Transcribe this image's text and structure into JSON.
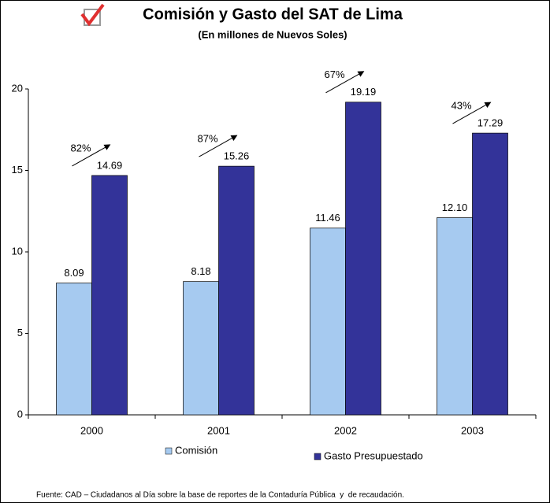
{
  "chart_data": {
    "type": "bar",
    "title": "Comisión y Gasto del SAT de Lima",
    "subtitle": "(En millones de Nuevos Soles)",
    "categories": [
      "2000",
      "2001",
      "2002",
      "2003"
    ],
    "series": [
      {
        "name": "Comisión",
        "color": "#a6caf0",
        "values": [
          8.09,
          8.18,
          11.46,
          12.1
        ],
        "value_labels": [
          "8.09",
          "8.18",
          "11.46",
          "12.10"
        ]
      },
      {
        "name": "Gasto Presupuestado",
        "color": "#333399",
        "values": [
          14.69,
          15.26,
          19.19,
          17.29
        ],
        "value_labels": [
          "14.69",
          "15.26",
          "19.19",
          "17.29"
        ]
      }
    ],
    "annotations": [
      "82%",
      "87%",
      "67%",
      "43%"
    ],
    "ylim": [
      0,
      20
    ],
    "yticks": [
      0,
      5,
      10,
      15,
      20
    ],
    "grid": false,
    "footnote": "Fuente: CAD – Ciudadanos al Día sobre la base de reportes de la Contaduría Pública  y  de recaudación."
  }
}
